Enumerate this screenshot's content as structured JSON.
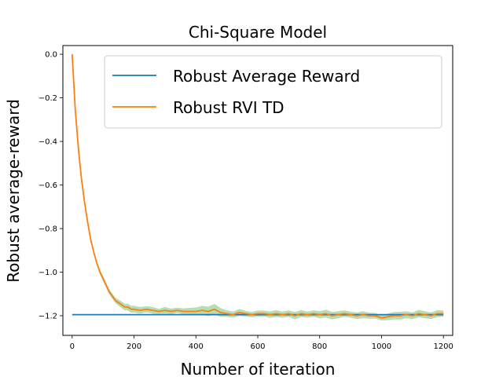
{
  "chart_data": {
    "type": "line",
    "title": "Chi-Square Model",
    "xlabel": "Number of iteration",
    "ylabel": "Robust average-reward",
    "xlim": [
      -30,
      1230
    ],
    "ylim": [
      -1.29,
      0.04
    ],
    "xticks": [
      0,
      200,
      400,
      600,
      800,
      1000,
      1200
    ],
    "xtick_labels": [
      "0",
      "200",
      "400",
      "600",
      "800",
      "1000",
      "1200"
    ],
    "yticks": [
      0.0,
      -0.2,
      -0.4,
      -0.6,
      -0.8,
      -1.0,
      -1.2
    ],
    "ytick_labels": [
      "0.0",
      "−0.2",
      "−0.4",
      "−0.6",
      "−0.8",
      "−1.0",
      "−1.2"
    ],
    "grid": false,
    "legend_position": "top-right",
    "series": [
      {
        "name": "Robust Average Reward",
        "color": "#1f77b4",
        "x": [
          0,
          1200
        ],
        "y": [
          -1.195,
          -1.195
        ]
      },
      {
        "name": "Robust RVI TD",
        "color": "#ff7f0e",
        "band_color": "#2ca02c",
        "band_opacity": 0.35,
        "x": [
          0,
          10,
          20,
          30,
          40,
          50,
          60,
          70,
          80,
          90,
          100,
          110,
          120,
          130,
          140,
          150,
          160,
          170,
          180,
          190,
          200,
          220,
          240,
          260,
          280,
          300,
          320,
          340,
          360,
          380,
          400,
          420,
          440,
          460,
          480,
          500,
          520,
          540,
          560,
          580,
          600,
          620,
          640,
          660,
          680,
          700,
          720,
          740,
          760,
          780,
          800,
          820,
          840,
          860,
          880,
          900,
          920,
          940,
          960,
          980,
          1000,
          1020,
          1040,
          1060,
          1080,
          1100,
          1120,
          1140,
          1160,
          1180,
          1200
        ],
        "y": [
          0.0,
          -0.25,
          -0.43,
          -0.57,
          -0.68,
          -0.77,
          -0.85,
          -0.91,
          -0.96,
          -1.0,
          -1.03,
          -1.06,
          -1.09,
          -1.11,
          -1.13,
          -1.14,
          -1.15,
          -1.16,
          -1.16,
          -1.17,
          -1.17,
          -1.175,
          -1.17,
          -1.175,
          -1.18,
          -1.175,
          -1.18,
          -1.175,
          -1.18,
          -1.18,
          -1.18,
          -1.175,
          -1.18,
          -1.17,
          -1.185,
          -1.19,
          -1.195,
          -1.185,
          -1.19,
          -1.195,
          -1.19,
          -1.19,
          -1.195,
          -1.19,
          -1.195,
          -1.19,
          -1.2,
          -1.19,
          -1.195,
          -1.19,
          -1.195,
          -1.19,
          -1.2,
          -1.195,
          -1.19,
          -1.195,
          -1.2,
          -1.195,
          -1.2,
          -1.2,
          -1.21,
          -1.205,
          -1.2,
          -1.2,
          -1.195,
          -1.2,
          -1.19,
          -1.195,
          -1.2,
          -1.19,
          -1.19
        ],
        "band_half_width": [
          0.0,
          0.01,
          0.01,
          0.01,
          0.01,
          0.01,
          0.01,
          0.01,
          0.01,
          0.01,
          0.012,
          0.012,
          0.012,
          0.012,
          0.013,
          0.014,
          0.015,
          0.015,
          0.016,
          0.016,
          0.016,
          0.015,
          0.014,
          0.015,
          0.012,
          0.015,
          0.013,
          0.012,
          0.014,
          0.016,
          0.018,
          0.02,
          0.022,
          0.024,
          0.02,
          0.015,
          0.014,
          0.016,
          0.013,
          0.012,
          0.014,
          0.013,
          0.015,
          0.016,
          0.014,
          0.015,
          0.017,
          0.016,
          0.014,
          0.015,
          0.016,
          0.018,
          0.017,
          0.016,
          0.015,
          0.014,
          0.015,
          0.016,
          0.014,
          0.013,
          0.012,
          0.015,
          0.017,
          0.018,
          0.016,
          0.015,
          0.017,
          0.016,
          0.015,
          0.016,
          0.014
        ]
      }
    ]
  }
}
